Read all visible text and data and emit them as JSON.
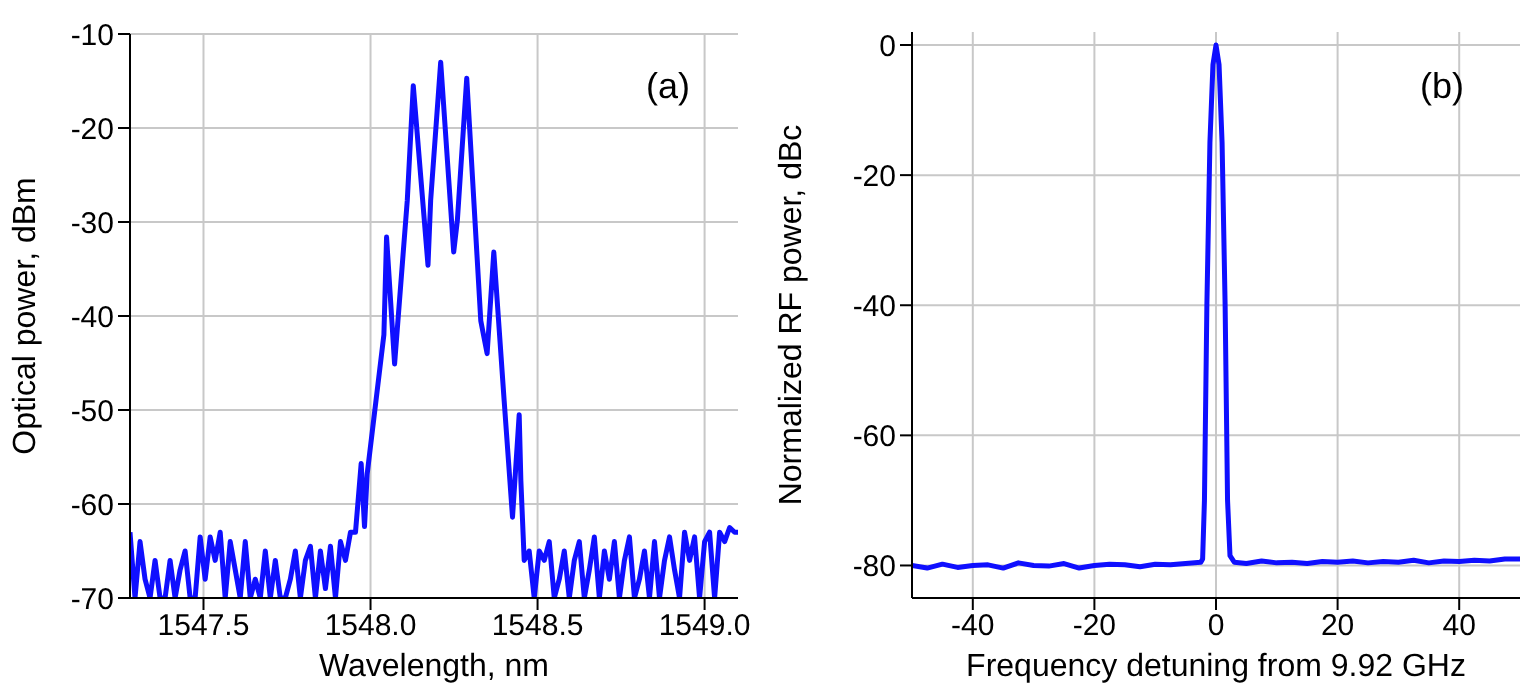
{
  "chart_data": [
    {
      "type": "line",
      "xlabel": "Wavelength, nm",
      "ylabel": "Optical power, dBm",
      "annotations": [
        "(a)"
      ],
      "grid": true,
      "xlim": [
        1547.28,
        1549.1
      ],
      "xticks": [
        1547.5,
        {
          "value": 1548,
          "label": "1548.0"
        },
        1548.5,
        {
          "value": 1549,
          "label": "1549.0"
        }
      ],
      "ylim": [
        -70,
        -10
      ],
      "yticks": [
        -70,
        -60,
        -50,
        -40,
        -30,
        -20,
        -10
      ],
      "series": [
        {
          "color": "#0f0fff",
          "x": [
            1547.28,
            1547.295,
            1547.31,
            1547.325,
            1547.34,
            1547.355,
            1547.37,
            1547.385,
            1547.4,
            1547.415,
            1547.43,
            1547.445,
            1547.46,
            1547.475,
            1547.49,
            1547.505,
            1547.52,
            1547.535,
            1547.55,
            1547.565,
            1547.58,
            1547.595,
            1547.61,
            1547.625,
            1547.64,
            1547.655,
            1547.67,
            1547.685,
            1547.7,
            1547.715,
            1547.73,
            1547.745,
            1547.76,
            1547.775,
            1547.79,
            1547.805,
            1547.82,
            1547.835,
            1547.85,
            1547.865,
            1547.88,
            1547.895,
            1547.91,
            1547.925,
            1547.94,
            1547.955,
            1547.972,
            1547.982,
            1547.99,
            1548.04,
            1548.048,
            1548.072,
            1548.11,
            1548.128,
            1548.172,
            1548.18,
            1548.21,
            1548.249,
            1548.26,
            1548.288,
            1548.33,
            1548.349,
            1548.369,
            1548.4,
            1548.425,
            1548.445,
            1548.45,
            1548.46,
            1548.475,
            1548.49,
            1548.505,
            1548.52,
            1548.535,
            1548.55,
            1548.565,
            1548.58,
            1548.595,
            1548.61,
            1548.625,
            1548.64,
            1548.655,
            1548.67,
            1548.685,
            1548.7,
            1548.715,
            1548.73,
            1548.745,
            1548.76,
            1548.775,
            1548.79,
            1548.805,
            1548.82,
            1548.835,
            1548.85,
            1548.865,
            1548.88,
            1548.895,
            1548.91,
            1548.925,
            1548.94,
            1548.955,
            1548.97,
            1548.985,
            1549.0,
            1549.015,
            1549.03,
            1549.045,
            1549.06,
            1549.075,
            1549.09,
            1549.1
          ],
          "values": [
            -63,
            -70,
            -64,
            -68,
            -70,
            -66,
            -70,
            -70,
            -66,
            -70,
            -67,
            -65,
            -70,
            -70,
            -63.5,
            -68,
            -63.5,
            -66,
            -63,
            -70,
            -64,
            -67,
            -70,
            -64,
            -70,
            -68,
            -70,
            -65,
            -70,
            -66,
            -70,
            -70,
            -68,
            -65,
            -70,
            -66,
            -64.5,
            -70,
            -65,
            -69,
            -64.5,
            -70,
            -64,
            -66,
            -63,
            -63,
            -55.7,
            -62.4,
            -56.8,
            -42,
            -31.6,
            -45.1,
            -27.7,
            -15.5,
            -34.6,
            -27.7,
            -13,
            -33.2,
            -29.8,
            -14.7,
            -40.5,
            -44,
            -33.2,
            -49,
            -61.4,
            -50.5,
            -57.5,
            -66,
            -65,
            -70,
            -65,
            -66,
            -64,
            -70,
            -68,
            -65,
            -70,
            -66,
            -64,
            -70,
            -67,
            -63.5,
            -70,
            -65,
            -68,
            -64,
            -70,
            -66,
            -63.5,
            -70,
            -68,
            -65,
            -70,
            -64,
            -70,
            -66,
            -63.5,
            -67,
            -70,
            -63,
            -66,
            -63.5,
            -70,
            -64,
            -63,
            -70,
            -63,
            -64,
            -62.5,
            -63,
            -63
          ]
        }
      ]
    },
    {
      "type": "line",
      "xlabel": "Frequency detuning from 9.92 GHz",
      "ylabel": "Normalized RF power, dBc",
      "annotations": [
        "(b)"
      ],
      "grid": true,
      "xlim": [
        -50,
        50
      ],
      "xticks": [
        -40,
        -20,
        0,
        20,
        40
      ],
      "ylim": [
        -85,
        2
      ],
      "yticks": [
        -80,
        -60,
        -40,
        -20,
        0
      ],
      "series": [
        {
          "color": "#0f0fff",
          "x": [
            -50,
            -47.5,
            -45,
            -42.5,
            -40,
            -37.5,
            -35,
            -32.5,
            -30,
            -27.5,
            -25,
            -22.5,
            -20,
            -17.5,
            -15,
            -12.5,
            -10,
            -7.5,
            -5,
            -2.5,
            -2.2,
            -1.9,
            -1.5,
            -1,
            -0.5,
            0,
            0.5,
            1,
            1.5,
            1.9,
            2.3,
            3,
            5,
            7.5,
            10,
            12.5,
            15,
            17.5,
            20,
            22.5,
            25,
            27.5,
            30,
            32.5,
            35,
            37.5,
            40,
            42.5,
            45,
            47.5,
            50
          ],
          "values": [
            -80,
            -80.4,
            -79.8,
            -80.3,
            -80,
            -79.9,
            -80.4,
            -79.6,
            -80,
            -80.1,
            -79.7,
            -80.4,
            -80,
            -79.8,
            -79.9,
            -80.2,
            -79.8,
            -79.9,
            -79.7,
            -79.5,
            -79,
            -70,
            -40,
            -15,
            -3,
            0,
            -3,
            -15,
            -40,
            -70,
            -78.5,
            -79.5,
            -79.7,
            -79.3,
            -79.6,
            -79.5,
            -79.7,
            -79.4,
            -79.5,
            -79.3,
            -79.6,
            -79.4,
            -79.5,
            -79.2,
            -79.6,
            -79.3,
            -79.4,
            -79.2,
            -79.3,
            -79,
            -79
          ]
        }
      ]
    }
  ]
}
